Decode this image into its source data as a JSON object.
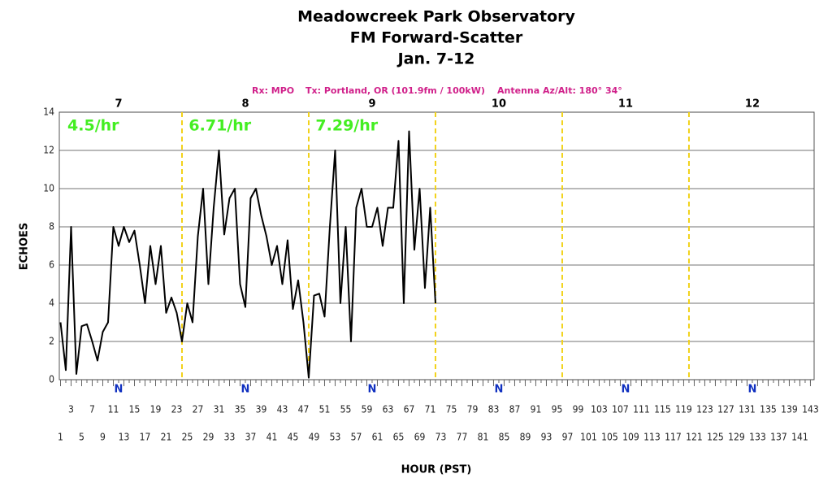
{
  "chart_data": {
    "type": "line",
    "title": [
      "Meadowcreek Park Observatory",
      "FM Forward-Scatter",
      "Jan. 7-12"
    ],
    "subtitle": [
      "Rx: MPO",
      "Tx: Portland, OR (101.9fm / 100kW)",
      "Antenna Az/Alt: 180° 34°"
    ],
    "x_label": "HOUR (PST)",
    "y_label": "ECHOES",
    "days": [
      "7",
      "8",
      "9",
      "10",
      "11",
      "12"
    ],
    "rates": [
      "4.5/hr",
      "6.71/hr",
      "7.29/hr"
    ],
    "marker_label": "N",
    "day_boundaries": [
      24,
      48,
      72,
      96,
      120
    ],
    "x": [
      1,
      2,
      3,
      4,
      5,
      6,
      7,
      8,
      9,
      10,
      11,
      12,
      13,
      14,
      15,
      16,
      17,
      18,
      19,
      20,
      21,
      22,
      23,
      24,
      25,
      26,
      27,
      28,
      29,
      30,
      31,
      32,
      33,
      34,
      35,
      36,
      37,
      38,
      39,
      40,
      41,
      42,
      43,
      44,
      45,
      46,
      47,
      48,
      49,
      50,
      51,
      52,
      53,
      54,
      55,
      56,
      57,
      58,
      59,
      60,
      61,
      62,
      63,
      64,
      65,
      66,
      67,
      68,
      69,
      70,
      71,
      72
    ],
    "series": [
      {
        "name": "Echoes",
        "color": "#000000",
        "values": [
          3,
          0.5,
          8,
          0.3,
          2.8,
          2.9,
          2,
          1,
          2.5,
          3,
          8,
          7,
          8,
          7.2,
          7.8,
          6,
          4,
          7,
          5,
          7,
          3.5,
          4.3,
          3.5,
          2,
          4,
          3,
          7.5,
          10,
          5,
          9,
          12,
          7.6,
          9.5,
          10,
          5,
          3.8,
          9.5,
          10,
          8.6,
          7.5,
          6,
          7,
          5,
          7.3,
          3.7,
          5.2,
          3,
          0.1,
          4.4,
          4.5,
          3.3,
          8,
          12,
          4,
          8,
          2,
          9,
          10,
          8,
          8,
          9,
          7,
          9,
          9,
          12.5,
          4,
          13,
          6.8,
          10,
          4.8,
          9,
          4
        ]
      }
    ],
    "xlim": [
      0.77,
      143.7
    ],
    "ylim": [
      0,
      14
    ],
    "yticks": [
      0,
      2,
      4,
      6,
      8,
      10,
      12,
      14
    ],
    "xticks": [
      1,
      3,
      5,
      7,
      9,
      11,
      13,
      15,
      17,
      19,
      21,
      23,
      25,
      27,
      29,
      31,
      33,
      35,
      37,
      39,
      41,
      43,
      45,
      47,
      49,
      51,
      53,
      55,
      57,
      59,
      61,
      63,
      65,
      67,
      69,
      71,
      73,
      75,
      77,
      79,
      81,
      83,
      85,
      87,
      89,
      91,
      93,
      95,
      97,
      99,
      101,
      103,
      105,
      107,
      109,
      111,
      113,
      115,
      117,
      119,
      121,
      123,
      125,
      127,
      129,
      131,
      133,
      135,
      137,
      139,
      141,
      143
    ],
    "grid": true
  }
}
